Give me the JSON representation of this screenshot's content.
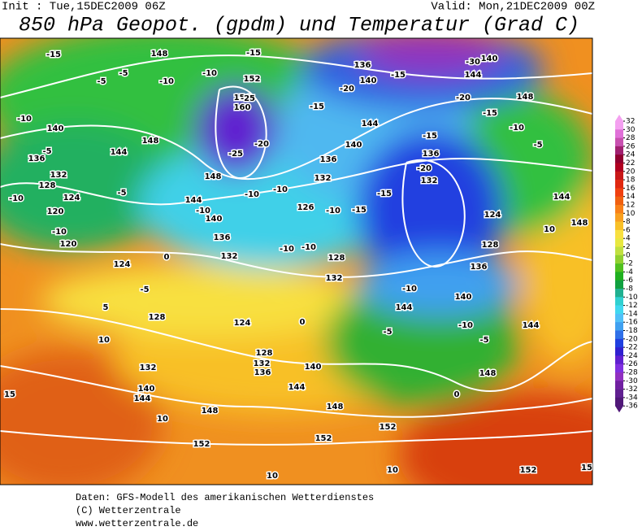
{
  "header": {
    "init": "Init : Tue,15DEC2009 06Z",
    "valid": "Valid: Mon,21DEC2009 00Z",
    "title": "850 hPa Geopot. (gpdm) und Temperatur (Grad C)"
  },
  "map": {
    "contour_labels": [
      "-15",
      "148",
      "-15",
      "-5",
      "-5",
      "-10",
      "-10",
      "152",
      "156",
      "160",
      "-25",
      "-20",
      "-25",
      "148",
      "-10",
      "140",
      "-5",
      "144",
      "148",
      "136",
      "132",
      "128",
      "124",
      "-10",
      "120",
      "-10",
      "120",
      "-5",
      "144",
      "-10",
      "140",
      "136",
      "132",
      "-10",
      "-10",
      "126",
      "-10",
      "-15",
      "136",
      "132",
      "140",
      "-15",
      "144",
      "-20",
      "136",
      "140",
      "-15",
      "-30",
      "140",
      "144",
      "-20",
      "-15",
      "148",
      "-10",
      "-5",
      "-15",
      "136",
      "-20",
      "132",
      "-15",
      "124",
      "128",
      "144",
      "148",
      "10",
      "-10",
      "-10",
      "128",
      "132",
      "136",
      "-10",
      "144",
      "140",
      "-10",
      "-5",
      "144",
      "-5",
      "148",
      "0",
      "124",
      "0",
      "-5",
      "5",
      "128",
      "124",
      "0",
      "10",
      "132",
      "128",
      "132",
      "136",
      "140",
      "144",
      "148",
      "140",
      "144",
      "148",
      "10",
      "152",
      "152",
      "152",
      "10",
      "10",
      "152",
      "15",
      "15"
    ]
  },
  "colorbar": {
    "ticks": [
      32,
      30,
      28,
      26,
      24,
      22,
      20,
      18,
      16,
      14,
      12,
      10,
      8,
      6,
      4,
      2,
      0,
      -2,
      -4,
      -6,
      -8,
      -10,
      -12,
      -14,
      -16,
      -18,
      -20,
      -22,
      -24,
      -26,
      -28,
      -30,
      -32,
      -34,
      -36
    ],
    "colors": [
      "#f4a0f0",
      "#e070d8",
      "#c850b0",
      "#a02070",
      "#900030",
      "#b00020",
      "#c81818",
      "#e02810",
      "#f04010",
      "#f06010",
      "#f88018",
      "#f8a020",
      "#f8c028",
      "#f8e040",
      "#e8e840",
      "#c0e040",
      "#90d030",
      "#50c020",
      "#20b020",
      "#10a040",
      "#20b090",
      "#30d0d0",
      "#40d8f0",
      "#50c0f8",
      "#40a0f0",
      "#3070e8",
      "#2040e0",
      "#3020d0",
      "#6020d0",
      "#8030e0",
      "#9030c0",
      "#7020a0",
      "#602090",
      "#501878"
    ]
  },
  "footer": {
    "lines": [
      "Daten: GFS-Modell des amerikanischen Wetterdienstes",
      "(C) Wetterzentrale",
      "www.wetterzentrale.de"
    ]
  }
}
